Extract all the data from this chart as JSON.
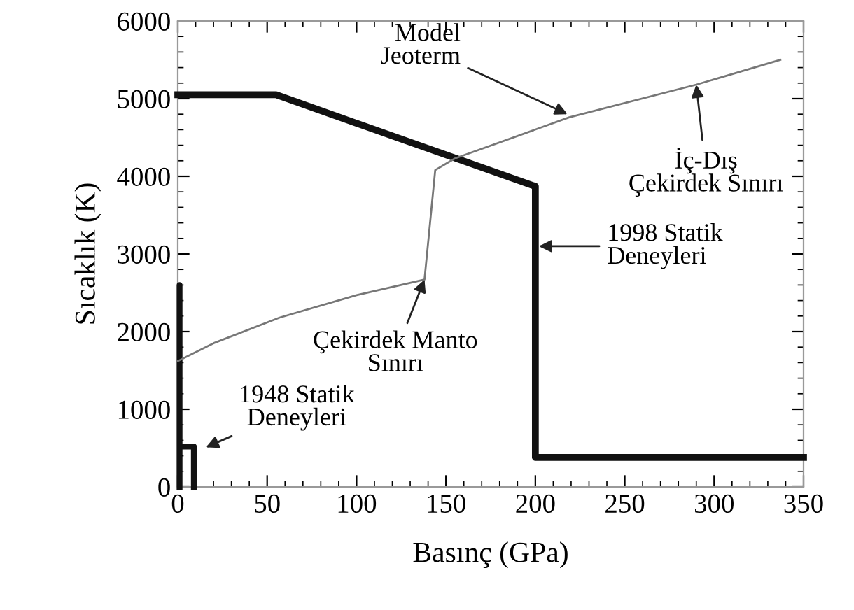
{
  "chart_data": {
    "type": "line",
    "xlabel": "Basınç (GPa)",
    "ylabel": "Sıcaklık (K)",
    "xlim": [
      0,
      350
    ],
    "ylim": [
      0,
      6000
    ],
    "xticks": [
      0,
      50,
      100,
      150,
      200,
      250,
      300,
      350
    ],
    "yticks": [
      0,
      1000,
      2000,
      3000,
      4000,
      5000,
      6000
    ],
    "grid": false,
    "legend": false,
    "series": [
      {
        "color": "#111111",
        "x": [
          0,
          55,
          200,
          200,
          350
        ],
        "values": [
          5050,
          5050,
          3870,
          380,
          380
        ]
      },
      {
        "color": "#111111",
        "x": [
          1,
          1,
          1,
          9,
          9
        ],
        "values": [
          0,
          2600,
          520,
          520,
          0
        ]
      },
      {
        "color": "#777777",
        "x": [
          0,
          20,
          57,
          100,
          138,
          144,
          155,
          219,
          290,
          337
        ],
        "values": [
          1620,
          1850,
          2180,
          2470,
          2670,
          4080,
          4230,
          4760,
          5180,
          5500
        ]
      }
    ],
    "annotations": [
      {
        "text": "Model\nJeoterm",
        "x": 218,
        "y": 4800
      },
      {
        "text": "İç-Dış\nÇekirdek Sınırı",
        "x": 290,
        "y": 5180
      },
      {
        "text": "1998 Statik\nDeneyleri",
        "x": 202,
        "y": 3100
      },
      {
        "text": "Çekirdek Manto\nSınırı",
        "x": 138,
        "y": 2670
      },
      "1948 Statik\nDeneyleri"
    ]
  }
}
